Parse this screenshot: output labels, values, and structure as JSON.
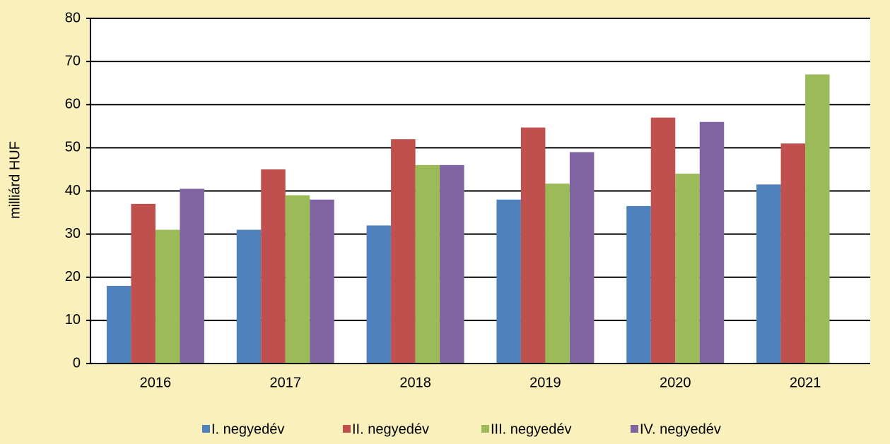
{
  "chart_data": {
    "type": "bar",
    "y_label": "milliárd HUF",
    "categories": [
      "2016",
      "2017",
      "2018",
      "2019",
      "2020",
      "2021"
    ],
    "series": [
      {
        "name": "I. negyedév",
        "color": "#4f81bd",
        "values": [
          18,
          31,
          32,
          38,
          36.5,
          41.5
        ]
      },
      {
        "name": "II. negyedév",
        "color": "#c0504d",
        "values": [
          37,
          45,
          52,
          54.7,
          57,
          51
        ]
      },
      {
        "name": "III. negyedév",
        "color": "#9bbb59",
        "values": [
          31,
          39,
          46,
          41.7,
          44,
          67
        ]
      },
      {
        "name": "IV. negyedév",
        "color": "#8064a2",
        "values": [
          40.5,
          38,
          46,
          49,
          56,
          null
        ]
      }
    ],
    "ylim": [
      0,
      80
    ],
    "yticks": [
      0,
      10,
      20,
      30,
      40,
      50,
      60,
      70,
      80
    ],
    "grid": true,
    "legend": "bottom"
  }
}
